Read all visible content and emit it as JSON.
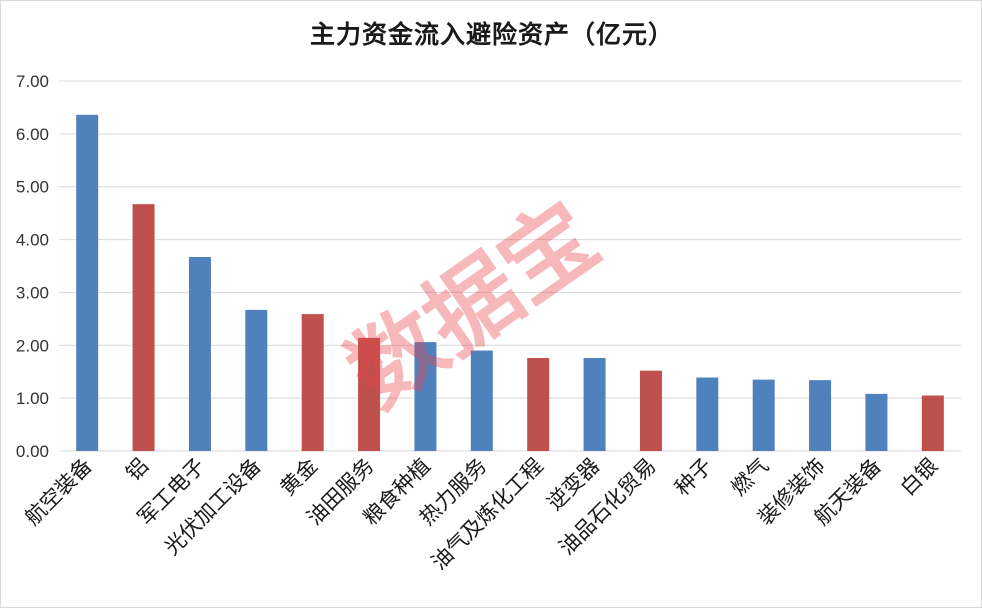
{
  "chart_data": {
    "type": "bar",
    "title": "主力资金流入避险资产（亿元）",
    "xlabel": "",
    "ylabel": "",
    "categories": [
      "航空装备",
      "铝",
      "军工电子",
      "光伏加工设备",
      "黄金",
      "油田服务",
      "粮食种植",
      "热力服务",
      "油气及炼化工程",
      "逆变器",
      "油品石化贸易",
      "种子",
      "燃气",
      "装修装饰",
      "航天装备",
      "白银"
    ],
    "values": [
      6.36,
      4.67,
      3.67,
      2.67,
      2.59,
      2.14,
      2.06,
      1.9,
      1.76,
      1.76,
      1.52,
      1.39,
      1.35,
      1.34,
      1.08,
      1.05
    ],
    "bar_colors": [
      "#4f81bd",
      "#c0504d",
      "#4f81bd",
      "#4f81bd",
      "#c0504d",
      "#c0504d",
      "#4f81bd",
      "#4f81bd",
      "#c0504d",
      "#4f81bd",
      "#c0504d",
      "#4f81bd",
      "#4f81bd",
      "#4f81bd",
      "#4f81bd",
      "#c0504d"
    ],
    "ylim": [
      0,
      7
    ],
    "yticks": [
      "0.00",
      "1.00",
      "2.00",
      "3.00",
      "4.00",
      "5.00",
      "6.00",
      "7.00"
    ],
    "grid": true,
    "legend": "none"
  },
  "watermark": "数据宝",
  "colors": {
    "blue": "#4f81bd",
    "red": "#c0504d",
    "grid": "#d9d9d9",
    "watermark": "#e8464d"
  }
}
